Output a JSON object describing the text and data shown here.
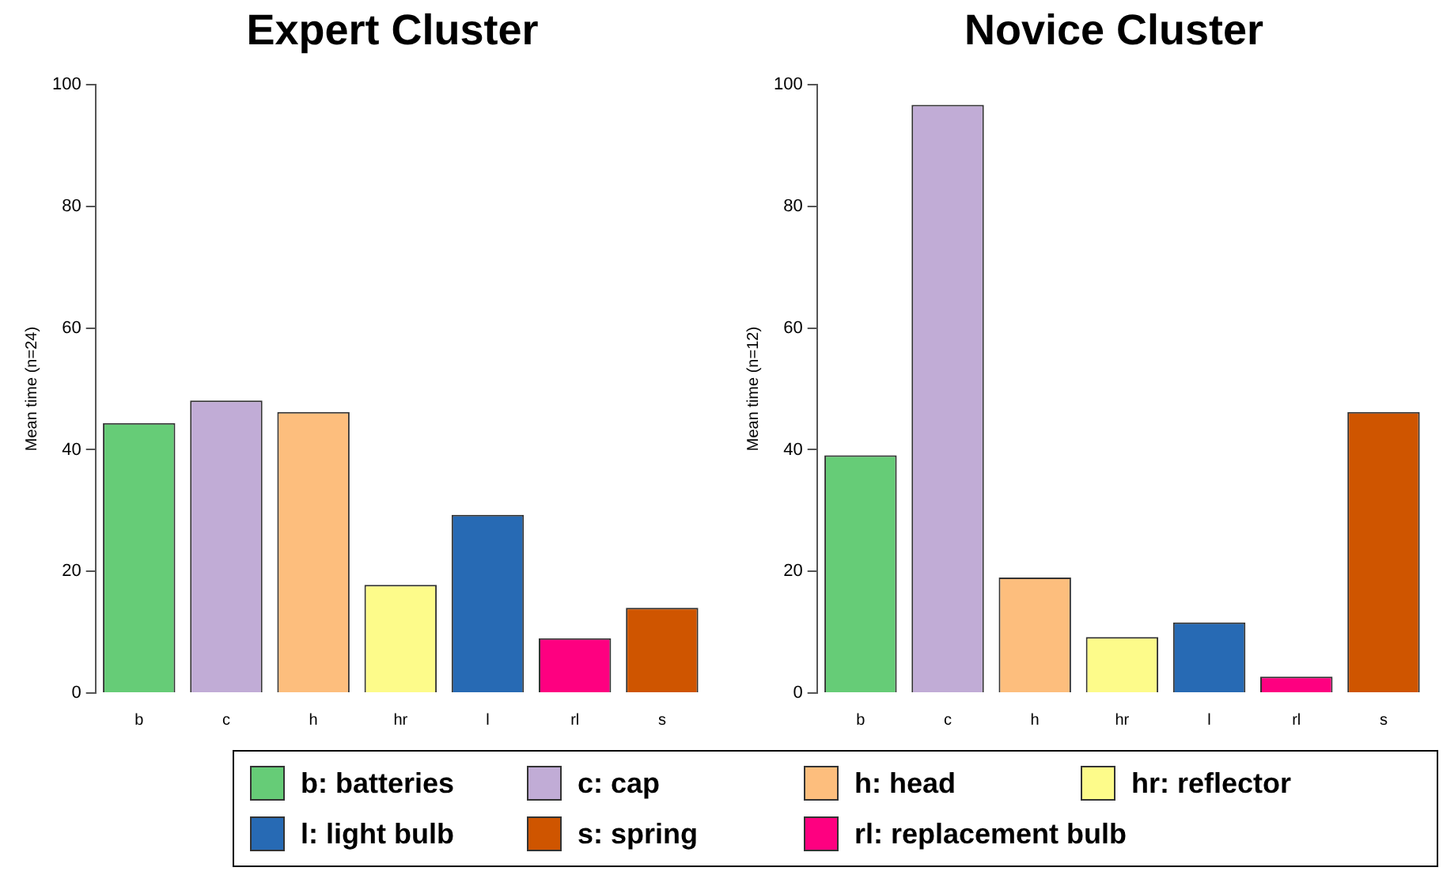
{
  "chart_data": [
    {
      "type": "bar",
      "title": "Expert Cluster",
      "ylabel": "Mean time (n=24)",
      "categories": [
        "b",
        "c",
        "h",
        "hr",
        "l",
        "rl",
        "s"
      ],
      "values": [
        44.4,
        48.1,
        46.2,
        17.8,
        29.3,
        9.0,
        14.0
      ],
      "colors": [
        "#66cc77",
        "#c1acd6",
        "#fdbe7d",
        "#fdfb8a",
        "#276ab4",
        "#fe0080",
        "#cf5500"
      ],
      "ylim": [
        0,
        100
      ],
      "yticks": [
        0,
        20,
        40,
        60,
        80,
        100
      ],
      "grid": false,
      "legend": false
    },
    {
      "type": "bar",
      "title": "Novice Cluster",
      "ylabel": "Mean time (n=12)",
      "categories": [
        "b",
        "c",
        "h",
        "hr",
        "l",
        "rl",
        "s"
      ],
      "values": [
        39.1,
        96.7,
        19.0,
        9.2,
        11.6,
        2.7,
        46.2
      ],
      "colors": [
        "#66cc77",
        "#c1acd6",
        "#fdbe7d",
        "#fdfb8a",
        "#276ab4",
        "#fe0080",
        "#cf5500"
      ],
      "ylim": [
        0,
        100
      ],
      "yticks": [
        0,
        20,
        40,
        60,
        80,
        100
      ],
      "grid": false,
      "legend": false
    },
    {
      "type": "other",
      "annotations": [
        "b: batteries",
        "c: cap",
        "h: head",
        "hr: reflector",
        "l: light bulb",
        "s: spring",
        "rl: replacement bulb"
      ],
      "colors": [
        "#66cc77",
        "#c1acd6",
        "#fdbe7d",
        "#fdfb8a",
        "#276ab4",
        "#cf5500",
        "#fe0080"
      ]
    }
  ]
}
